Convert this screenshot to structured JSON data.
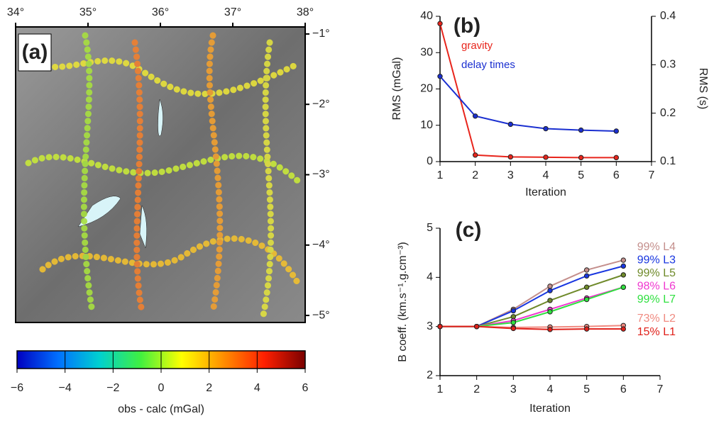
{
  "chart_data": [
    {
      "type": "map",
      "panel_label": "(a)",
      "xlim": [
        34,
        38
      ],
      "ylim": [
        -5.1,
        -0.9
      ],
      "xticks": [
        {
          "value": 34,
          "label": "34°"
        },
        {
          "value": 35,
          "label": "35°"
        },
        {
          "value": 36,
          "label": "36°"
        },
        {
          "value": 37,
          "label": "37°"
        },
        {
          "value": 38,
          "label": "38°"
        }
      ],
      "yticks": [
        {
          "value": -1,
          "label": "−1°"
        },
        {
          "value": -2,
          "label": "−2°"
        },
        {
          "value": -3,
          "label": "−3°"
        },
        {
          "value": -4,
          "label": "−4°"
        },
        {
          "value": -5,
          "label": "−5°"
        }
      ]
    },
    {
      "type": "colorbar",
      "xlabel": "obs - calc (mGal)",
      "xlim": [
        -6,
        6
      ],
      "xticks": [
        {
          "value": -6,
          "label": "−6"
        },
        {
          "value": -4,
          "label": "−4"
        },
        {
          "value": -2,
          "label": "−2"
        },
        0,
        2,
        4,
        6
      ],
      "colors": [
        "#0000c0",
        "#0070ff",
        "#00d0d0",
        "#40f040",
        "#ffff00",
        "#ff9000",
        "#ff2000",
        "#7a0000"
      ]
    },
    {
      "type": "line",
      "panel_label": "(b)",
      "xlabel": "Iteration",
      "ylabel": "RMS (mGal)",
      "y2label": "RMS (s)",
      "x": [
        1,
        2,
        3,
        4,
        5,
        6
      ],
      "xlim": [
        1,
        7
      ],
      "xticks": [
        1,
        2,
        3,
        4,
        5,
        6,
        7
      ],
      "ylim": [
        0,
        40
      ],
      "yticks": [
        0,
        10,
        20,
        30,
        40
      ],
      "y2lim": [
        0.1,
        0.4
      ],
      "y2ticks": [
        0.1,
        0.2,
        0.3,
        0.4
      ],
      "series": [
        {
          "name": "gravity",
          "color": "#e8251c",
          "values": [
            38,
            1.8,
            1.3,
            1.2,
            1.1,
            1.1
          ]
        },
        {
          "name": "delay times",
          "color": "#1a2fd0",
          "axis": "y2",
          "values": [
            0.276,
            0.194,
            0.177,
            0.168,
            0.165,
            0.163
          ]
        }
      ]
    },
    {
      "type": "line",
      "panel_label": "(c)",
      "xlabel": "Iteration",
      "ylabel": "B coeff. (km.s⁻¹.g.cm⁻³)",
      "x": [
        1,
        2,
        3,
        4,
        5,
        6
      ],
      "xlim": [
        1,
        7
      ],
      "xticks": [
        1,
        2,
        3,
        4,
        5,
        6,
        7
      ],
      "ylim": [
        2,
        5
      ],
      "yticks": [
        2,
        3,
        4,
        5
      ],
      "series": [
        {
          "name": "99% L4",
          "color": "#c48f8c",
          "values": [
            3,
            3,
            3.35,
            3.82,
            4.15,
            4.35
          ]
        },
        {
          "name": "99% L3",
          "color": "#1836e0",
          "values": [
            3,
            3,
            3.32,
            3.73,
            4.03,
            4.23
          ]
        },
        {
          "name": "99% L5",
          "color": "#6f8a2a",
          "values": [
            3,
            3,
            3.2,
            3.53,
            3.8,
            4.05
          ]
        },
        {
          "name": "98% L6",
          "color": "#f038d0",
          "values": [
            3,
            3,
            3.12,
            3.35,
            3.58,
            3.8
          ]
        },
        {
          "name": "99% L7",
          "color": "#30e040",
          "values": [
            3,
            3,
            3.08,
            3.3,
            3.55,
            3.8
          ]
        },
        {
          "name": "73% L2",
          "color": "#f08a80",
          "values": [
            3,
            3,
            2.98,
            2.99,
            3.0,
            3.02
          ]
        },
        {
          "name": "15% L1",
          "color": "#e0201a",
          "values": [
            3,
            3,
            2.96,
            2.94,
            2.95,
            2.95
          ]
        }
      ]
    }
  ]
}
